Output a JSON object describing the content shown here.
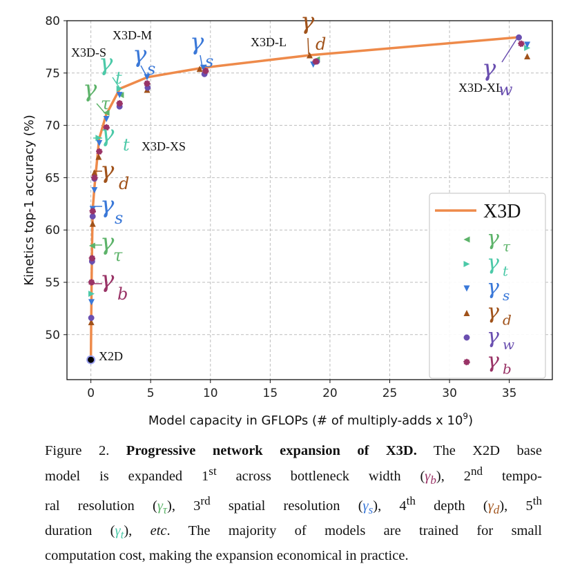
{
  "chart_data": {
    "type": "line",
    "xlabel": "Model capacity in GFLOPs (# of multiply-adds x 10",
    "xlabel_sup": "9",
    "xlabel_end": ")",
    "ylabel": "Kinetics top-1 accuracy (%)",
    "xlim": [
      -2,
      38.6
    ],
    "ylim": [
      45.7,
      80
    ],
    "xticks": [
      0,
      5,
      10,
      15,
      20,
      25,
      30,
      35
    ],
    "yticks": [
      50,
      55,
      60,
      65,
      70,
      75,
      80
    ],
    "grid": true,
    "legend_position": "bottom-right",
    "series": [
      {
        "name": "X3D",
        "kind": "line",
        "color": "#EE8A4A",
        "points": [
          [
            0,
            47.6
          ],
          [
            0.03,
            51.5
          ],
          [
            0.06,
            55.0
          ],
          [
            0.1,
            58.5
          ],
          [
            0.15,
            61.9
          ],
          [
            0.29,
            64.0
          ],
          [
            0.69,
            68.7
          ],
          [
            1.27,
            71.0
          ],
          [
            2.42,
            73.5
          ],
          [
            4.73,
            74.6
          ],
          [
            9.34,
            75.5
          ],
          [
            18.3,
            76.7
          ],
          [
            35.6,
            78.4
          ]
        ]
      },
      {
        "name": "γ",
        "sub": "τ",
        "kind": "marker",
        "marker": "triangle-left",
        "color": "#5DB36A",
        "points": [
          [
            0.1,
            58.5
          ],
          [
            1.3,
            71.2
          ],
          [
            2.5,
            72.9
          ],
          [
            18.9,
            76.3
          ]
        ]
      },
      {
        "name": "γ",
        "sub": "t",
        "kind": "marker",
        "marker": "triangle-right",
        "color": "#4CC9A8",
        "points": [
          [
            0.05,
            53.9
          ],
          [
            0.65,
            68.8
          ],
          [
            2.4,
            73.5
          ],
          [
            36.5,
            77.4
          ]
        ]
      },
      {
        "name": "γ",
        "sub": "s",
        "kind": "marker",
        "marker": "triangle-down",
        "color": "#3A78D8",
        "points": [
          [
            0.05,
            53.1
          ],
          [
            0.1,
            56.9
          ],
          [
            0.15,
            62.0
          ],
          [
            0.3,
            63.8
          ],
          [
            0.7,
            68.3
          ],
          [
            1.3,
            70.6
          ],
          [
            2.4,
            72.9
          ],
          [
            4.7,
            74.6
          ],
          [
            9.4,
            75.5
          ],
          [
            18.6,
            75.8
          ],
          [
            36.5,
            77.7
          ]
        ]
      },
      {
        "name": "γ",
        "sub": "d",
        "kind": "marker",
        "marker": "triangle-up",
        "color": "#A0521A",
        "points": [
          [
            0.03,
            51.2
          ],
          [
            0.15,
            60.6
          ],
          [
            0.3,
            65.5
          ],
          [
            0.65,
            67.0
          ],
          [
            4.7,
            73.4
          ],
          [
            9.1,
            75.4
          ],
          [
            18.3,
            76.7
          ],
          [
            36.5,
            76.6
          ]
        ]
      },
      {
        "name": "γ",
        "sub": "w",
        "kind": "marker",
        "marker": "plus",
        "color": "#6A4FB0",
        "points": [
          [
            0.03,
            51.6
          ],
          [
            0.1,
            57.0
          ],
          [
            0.15,
            61.3
          ],
          [
            0.3,
            64.9
          ],
          [
            2.4,
            71.8
          ],
          [
            4.75,
            73.6
          ],
          [
            9.5,
            74.9
          ],
          [
            18.9,
            76.1
          ],
          [
            35.8,
            78.4
          ]
        ]
      },
      {
        "name": "γ",
        "sub": "b",
        "kind": "marker",
        "marker": "x",
        "color": "#993366",
        "points": [
          [
            0.05,
            55.0
          ],
          [
            0.1,
            57.3
          ],
          [
            0.15,
            61.8
          ],
          [
            0.3,
            65.0
          ],
          [
            0.7,
            67.5
          ],
          [
            1.3,
            69.8
          ],
          [
            2.4,
            72.1
          ],
          [
            4.7,
            74.0
          ],
          [
            9.6,
            75.2
          ],
          [
            18.8,
            76.1
          ],
          [
            36.0,
            77.8
          ]
        ]
      }
    ],
    "x2d_point": [
      0,
      47.6
    ],
    "annotations": {
      "x2d": "X2D",
      "xs": "X3D-XS",
      "s": "X3D-S",
      "m": "X3D-M",
      "l": "X3D-L",
      "xl": "X3D-XL",
      "gamma": "γ",
      "tau": "τ",
      "t": "t",
      "s_sub": "s",
      "d": "d",
      "w": "w",
      "b": "b"
    }
  },
  "caption": {
    "fig": "Figure 2. ",
    "title": "Progressive network expansion of X3D.",
    "l1_rest": " The X2D base",
    "l2a": "model is expanded 1",
    "st": "st",
    "l2b": " across bottleneck width (",
    "gb": "γ",
    "gb_sub": "b",
    "l2c": "), 2",
    "nd": "nd",
    "l2d": " tempo-",
    "l3a": "ral resolution (",
    "gt": "γ",
    "gt_sub": "τ",
    "l3b": "), 3",
    "rd": "rd",
    "l3c": " spatial resolution (",
    "gs": "γ",
    "gs_sub": "s",
    "l3d": "), 4",
    "th4": "th",
    "l3e": " depth (",
    "gd": "γ",
    "gd_sub": "d",
    "l3f": "), 5",
    "th5": "th",
    "l4a": "duration (",
    "gtt": "γ",
    "gtt_sub": "t",
    "l4b": "), ",
    "etc": "etc",
    "l4c": ". The majority of models are trained for small",
    "l5": "computation cost, making the expansion economical in practice."
  }
}
